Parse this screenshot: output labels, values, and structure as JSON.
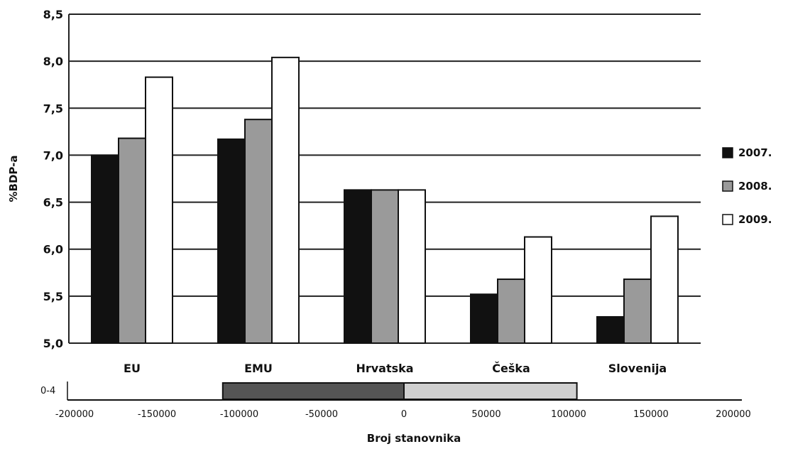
{
  "chart_data": [
    {
      "type": "bar",
      "categories": [
        "EU",
        "EMU",
        "Hrvatska",
        "Češka",
        "Slovenija"
      ],
      "series": [
        {
          "name": "2007.",
          "values": [
            7.0,
            7.17,
            6.63,
            5.52,
            5.28
          ],
          "color": "#111111"
        },
        {
          "name": "2008.",
          "values": [
            7.18,
            7.38,
            6.63,
            5.68,
            5.68
          ],
          "color": "#9a9a9a"
        },
        {
          "name": "2009.",
          "values": [
            7.83,
            8.04,
            6.63,
            6.13,
            6.35
          ],
          "color": "#ffffff"
        }
      ],
      "ylabel": "%BDP-a",
      "ylim": [
        5.0,
        8.5
      ],
      "yticks": [
        "5,0",
        "5,5",
        "6,0",
        "6,5",
        "7,0",
        "7,5",
        "8,0",
        "8,5"
      ],
      "grid": true,
      "legend": "right"
    },
    {
      "type": "bar",
      "orientation": "horizontal",
      "categories": [
        "0-4"
      ],
      "series": [
        {
          "values": [
            -110000
          ],
          "color": "#555555"
        },
        {
          "values": [
            105000
          ],
          "color": "#d0d0d0"
        }
      ],
      "xlabel": "Broj stanovnika",
      "xlim": [
        -200000,
        200000
      ],
      "xticks": [
        "-200000",
        "-150000",
        "-100000",
        "-50000",
        "0",
        "50000",
        "100000",
        "150000",
        "200000"
      ]
    }
  ]
}
